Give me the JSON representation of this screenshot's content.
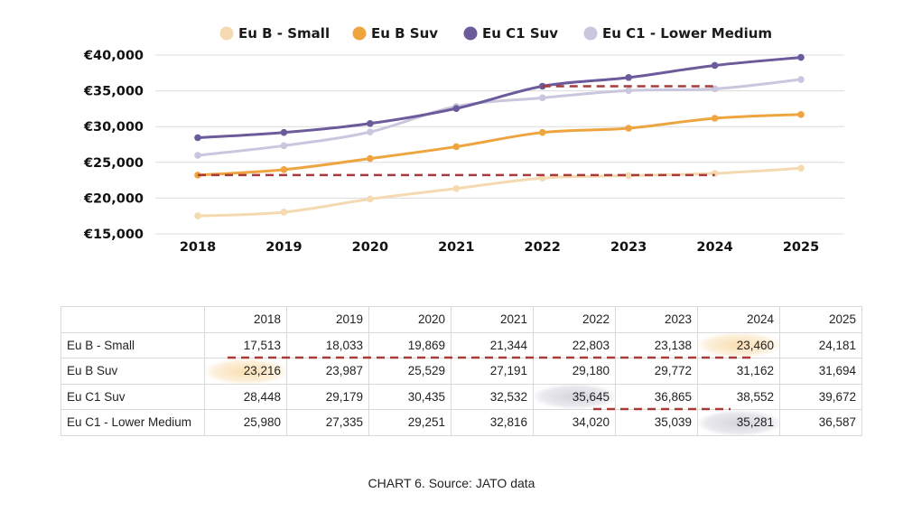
{
  "chart_data": {
    "type": "line",
    "title": "",
    "xlabel": "",
    "ylabel": "",
    "currency_prefix": "€",
    "categories": [
      "2018",
      "2019",
      "2020",
      "2021",
      "2022",
      "2023",
      "2024",
      "2025"
    ],
    "y_ticks": [
      15000,
      20000,
      25000,
      30000,
      35000,
      40000
    ],
    "ylim": [
      15000,
      40000
    ],
    "grid": true,
    "legend_position": "top",
    "series": [
      {
        "name": "Eu B - Small",
        "color": "#f5d9b0",
        "values": [
          17513,
          18033,
          19869,
          21344,
          22803,
          23138,
          23460,
          24181
        ]
      },
      {
        "name": "Eu B Suv",
        "color": "#eea53f",
        "values": [
          23216,
          23987,
          25529,
          27191,
          29180,
          29772,
          31162,
          31694
        ]
      },
      {
        "name": "Eu C1 Suv",
        "color": "#6b5b9a",
        "values": [
          28448,
          29179,
          30435,
          32532,
          35645,
          36865,
          38552,
          39672
        ]
      },
      {
        "name": "Eu C1 - Lower Medium",
        "color": "#c9c6dd",
        "values": [
          25980,
          27335,
          29251,
          32816,
          34020,
          35039,
          35281,
          36587
        ]
      }
    ],
    "annotations": [
      {
        "type": "dashed-line",
        "color": "#a83a3a",
        "y": 23216,
        "from": "2018",
        "to": "2024"
      },
      {
        "type": "dashed-line",
        "color": "#a83a3a",
        "y": 35645,
        "from": "2022",
        "to": "2024"
      }
    ]
  },
  "table": {
    "years": [
      "2018",
      "2019",
      "2020",
      "2021",
      "2022",
      "2023",
      "2024",
      "2025"
    ],
    "rows": [
      {
        "label": "Eu B - Small",
        "values": [
          "17,513",
          "18,033",
          "19,869",
          "21,344",
          "22,803",
          "23,138",
          "23,460",
          "24,181"
        ]
      },
      {
        "label": "Eu B Suv",
        "values": [
          "23,216",
          "23,987",
          "25,529",
          "27,191",
          "29,180",
          "29,772",
          "31,162",
          "31,694"
        ]
      },
      {
        "label": "Eu C1 Suv",
        "values": [
          "28,448",
          "29,179",
          "30,435",
          "32,532",
          "35,645",
          "36,865",
          "38,552",
          "39,672"
        ]
      },
      {
        "label": "Eu C1 - Lower Medium",
        "values": [
          "25,980",
          "27,335",
          "29,251",
          "32,816",
          "34,020",
          "35,039",
          "35,281",
          "36,587"
        ]
      }
    ],
    "highlights": [
      {
        "row": 0,
        "col": 6,
        "color": "orange"
      },
      {
        "row": 1,
        "col": 0,
        "color": "orange"
      },
      {
        "row": 2,
        "col": 4,
        "color": "gray"
      },
      {
        "row": 3,
        "col": 6,
        "color": "gray"
      }
    ]
  },
  "caption": "CHART 6. Source: JATO data"
}
